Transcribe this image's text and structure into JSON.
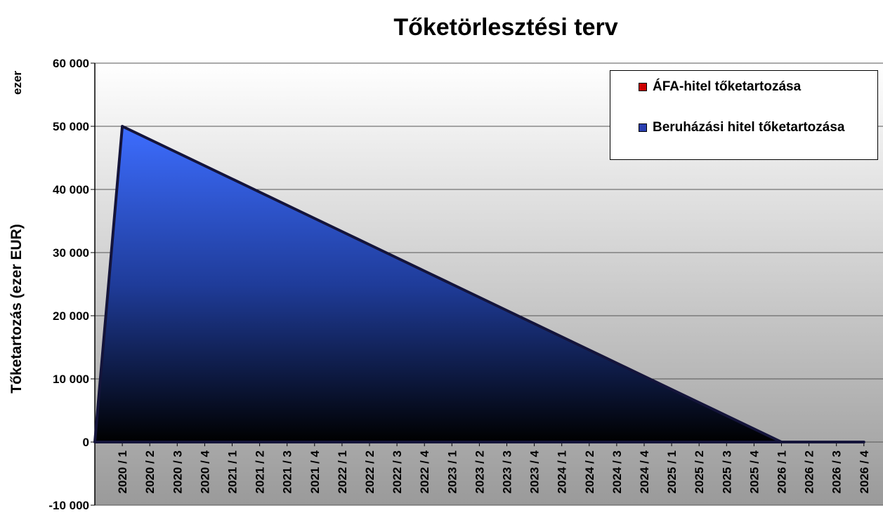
{
  "chart_data": {
    "type": "area",
    "title": "Tőketörlesztési terv",
    "y_axis_label": "Tőketartozás (ezer EUR)",
    "axis_note": "ezer",
    "categories": [
      null,
      "2020 / 1",
      "2020 / 2",
      "2020 / 3",
      "2020 / 4",
      "2021 / 1",
      "2021 / 2",
      "2021 / 3",
      "2021 / 4",
      "2022 / 1",
      "2022 / 2",
      "2022 / 3",
      "2022 / 4",
      "2023 / 1",
      "2023 / 2",
      "2023 / 3",
      "2023 / 4",
      "2024 / 1",
      "2024 / 2",
      "2024 / 3",
      "2024 / 4",
      "2025 / 1",
      "2025 / 2",
      "2025 / 3",
      "2025 / 4",
      "2026 / 1",
      "2026 / 2",
      "2026 / 3",
      "2026 / 4"
    ],
    "series": [
      {
        "name": "ÁFA-hitel tőketartozása",
        "color": "#cc0000",
        "values": [
          0,
          0,
          0,
          0,
          0,
          0,
          0,
          0,
          0,
          0,
          0,
          0,
          0,
          0,
          0,
          0,
          0,
          0,
          0,
          0,
          0,
          0,
          0,
          0,
          0,
          0,
          0,
          0,
          0
        ]
      },
      {
        "name": "Beruházási hitel tőketartozása",
        "color": "#2a3fb0",
        "values": [
          0,
          50000,
          47917,
          45833,
          43750,
          41667,
          39583,
          37500,
          35417,
          33333,
          31250,
          29167,
          27083,
          25000,
          22917,
          20833,
          18750,
          16667,
          14583,
          12500,
          10417,
          8333,
          6250,
          4167,
          2083,
          0,
          0,
          0,
          0
        ]
      }
    ],
    "ylim": [
      -10000,
      60000
    ],
    "yticks": [
      {
        "value": -10000,
        "label": "-10 000"
      },
      0,
      {
        "value": 10000,
        "label": "10 000"
      },
      {
        "value": 20000,
        "label": "20 000"
      },
      {
        "value": 30000,
        "label": "30 000"
      },
      {
        "value": 40000,
        "label": "40 000"
      },
      {
        "value": 50000,
        "label": "50 000"
      },
      {
        "value": 60000,
        "label": "60 000"
      }
    ],
    "grid": true,
    "legend": "top-right"
  }
}
